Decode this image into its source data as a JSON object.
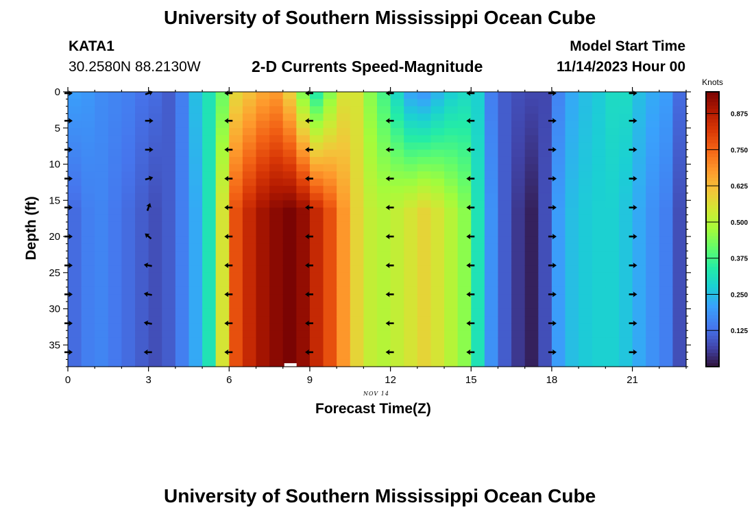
{
  "header": {
    "title": "University of Southern Mississippi Ocean Cube",
    "station": "KATA1",
    "coords": "30.2580N  88.2130W",
    "subtitle": "2-D Currents Speed-Magnitude",
    "model_start_label": "Model Start Time",
    "model_start_value": "11/14/2023 Hour 00"
  },
  "footer": {
    "title": "University of Southern Mississippi Ocean Cube"
  },
  "chart_data": {
    "type": "heatmap",
    "title": "2-D Currents Speed-Magnitude",
    "xlabel": "Forecast Time(Z)",
    "ylabel": "Depth (ft)",
    "x_ticks": [
      0,
      3,
      6,
      9,
      12,
      15,
      18,
      21
    ],
    "y_ticks": [
      0,
      5,
      10,
      15,
      20,
      25,
      30,
      35
    ],
    "xlim": [
      0,
      23
    ],
    "ylim": [
      38,
      0
    ],
    "date_label": "NOV 14",
    "colorbar": {
      "label": "Knots",
      "ticks": [
        "0.125",
        "0.250",
        "0.375",
        "0.500",
        "0.625",
        "0.750",
        "0.875"
      ],
      "range": [
        0,
        0.95
      ]
    },
    "hours": [
      0,
      0.5,
      1,
      1.5,
      2,
      2.5,
      3,
      3.5,
      4,
      4.5,
      5,
      5.5,
      6,
      6.5,
      7,
      7.5,
      8,
      8.5,
      9,
      9.5,
      10,
      10.5,
      11,
      11.5,
      12,
      12.5,
      13,
      13.5,
      14,
      14.5,
      15,
      15.5,
      16,
      16.5,
      17,
      17.5,
      18,
      18.5,
      19,
      19.5,
      20,
      20.5,
      21,
      21.5,
      22,
      22.5
    ],
    "surface_speed_knots": [
      0.2,
      0.19,
      0.17,
      0.16,
      0.15,
      0.13,
      0.12,
      0.1,
      0.15,
      0.25,
      0.32,
      0.42,
      0.58,
      0.62,
      0.66,
      0.68,
      0.6,
      0.45,
      0.35,
      0.45,
      0.55,
      0.55,
      0.45,
      0.38,
      0.3,
      0.22,
      0.2,
      0.24,
      0.28,
      0.3,
      0.28,
      0.15,
      0.1,
      0.08,
      0.07,
      0.07,
      0.16,
      0.22,
      0.25,
      0.27,
      0.3,
      0.3,
      0.25,
      0.22,
      0.2,
      0.12
    ],
    "bottom_speed_knots": [
      0.12,
      0.15,
      0.16,
      0.14,
      0.12,
      0.1,
      0.08,
      0.1,
      0.15,
      0.22,
      0.32,
      0.55,
      0.78,
      0.85,
      0.9,
      0.93,
      0.95,
      0.92,
      0.85,
      0.78,
      0.68,
      0.58,
      0.52,
      0.5,
      0.52,
      0.55,
      0.58,
      0.55,
      0.5,
      0.45,
      0.32,
      0.18,
      0.1,
      0.05,
      0.02,
      0.08,
      0.2,
      0.25,
      0.27,
      0.28,
      0.28,
      0.26,
      0.22,
      0.18,
      0.15,
      0.08
    ],
    "arrows": {
      "hours": [
        0,
        3,
        6,
        9,
        12,
        15,
        18,
        21
      ],
      "depths_ft": [
        0,
        4,
        8,
        12,
        16,
        20,
        24,
        28,
        32,
        36
      ],
      "direction_by_hour": [
        "east",
        "mixed",
        "west",
        "west",
        "west",
        "west",
        "east",
        "east"
      ],
      "hour3_angles_deg": [
        -20,
        0,
        0,
        -15,
        -70,
        220,
        190,
        190,
        190,
        180
      ]
    }
  }
}
